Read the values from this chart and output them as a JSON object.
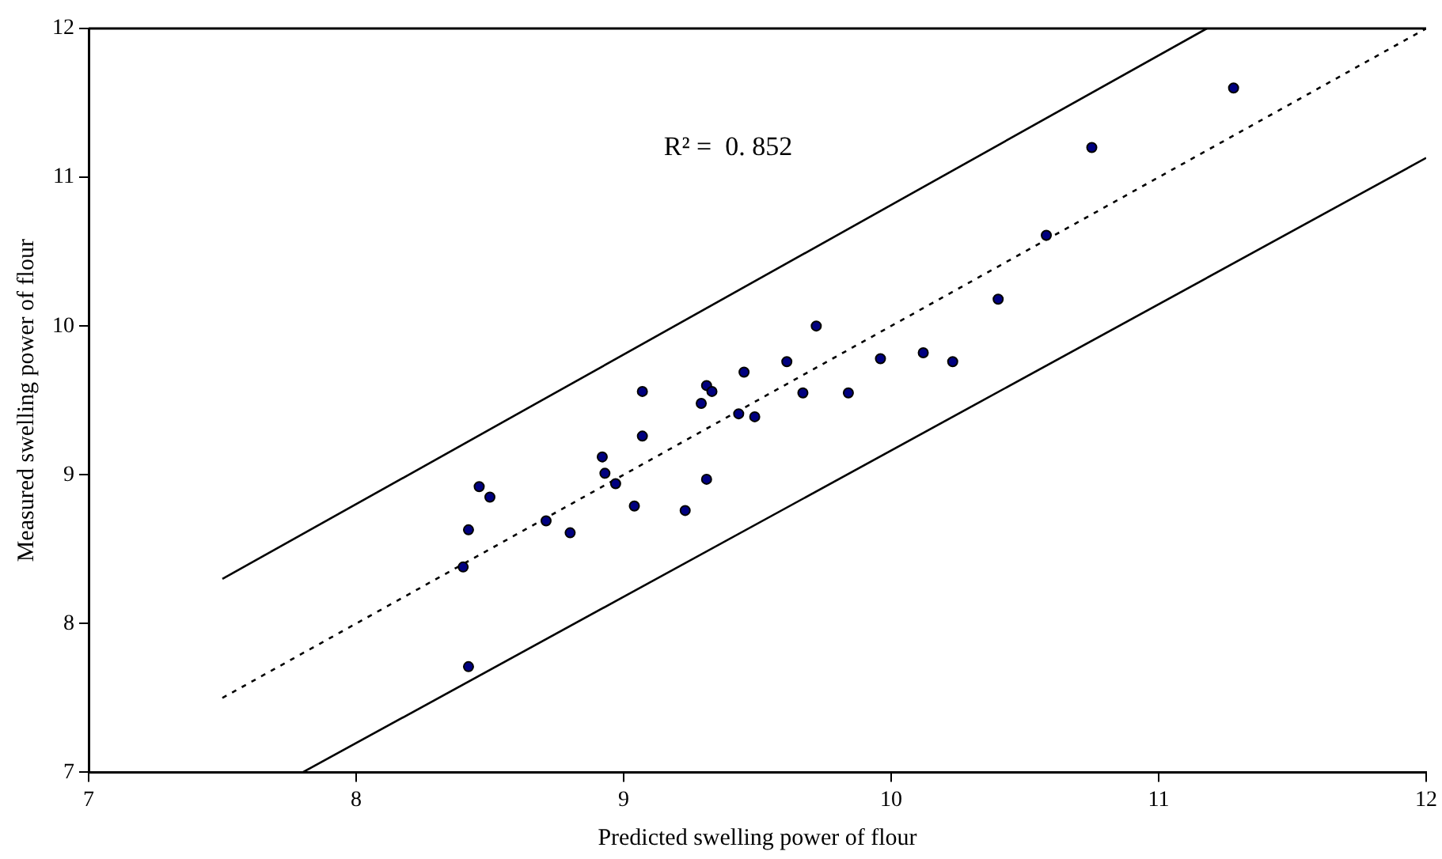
{
  "chart_data": {
    "type": "scatter",
    "xlabel": "Predicted swelling power of flour",
    "ylabel": "Measured swelling power of flour",
    "xlim": [
      7,
      12
    ],
    "ylim": [
      7,
      12
    ],
    "xticks": [
      7,
      8,
      9,
      10,
      11,
      12
    ],
    "yticks": [
      7,
      8,
      9,
      10,
      11,
      12
    ],
    "grid": false,
    "legend": false,
    "annotations": [
      "R² =  0. 852"
    ],
    "series": [
      {
        "color": "#000080",
        "marker": "circle",
        "x": [
          8.4,
          8.42,
          8.42,
          8.46,
          8.5,
          8.71,
          8.8,
          8.92,
          8.93,
          8.97,
          9.04,
          9.07,
          9.07,
          9.23,
          9.29,
          9.31,
          9.31,
          9.33,
          9.43,
          9.45,
          9.49,
          9.61,
          9.67,
          9.72,
          9.84,
          9.96,
          10.12,
          10.23,
          10.4,
          10.58,
          10.75,
          11.28
        ],
        "values": [
          8.38,
          8.63,
          7.71,
          8.92,
          8.85,
          8.69,
          8.61,
          9.12,
          9.01,
          8.94,
          8.79,
          9.56,
          9.26,
          8.76,
          9.48,
          9.6,
          8.97,
          9.56,
          9.41,
          9.69,
          9.39,
          9.76,
          9.55,
          10.0,
          9.55,
          9.78,
          9.82,
          9.76,
          10.18,
          10.61,
          11.2,
          11.6
        ]
      },
      {
        "type": "line",
        "color": "#000000",
        "line_style": "dotted",
        "marker": "none",
        "x": [
          7.5,
          12
        ],
        "values": [
          7.5,
          12
        ]
      },
      {
        "type": "line",
        "color": "#000000",
        "line_style": "solid",
        "marker": "none",
        "x": [
          7.5,
          11.18
        ],
        "values": [
          8.3,
          12
        ]
      },
      {
        "type": "line",
        "color": "#000000",
        "line_style": "solid",
        "marker": "none",
        "x": [
          7.8,
          12
        ],
        "values": [
          7,
          11.13
        ]
      }
    ]
  }
}
